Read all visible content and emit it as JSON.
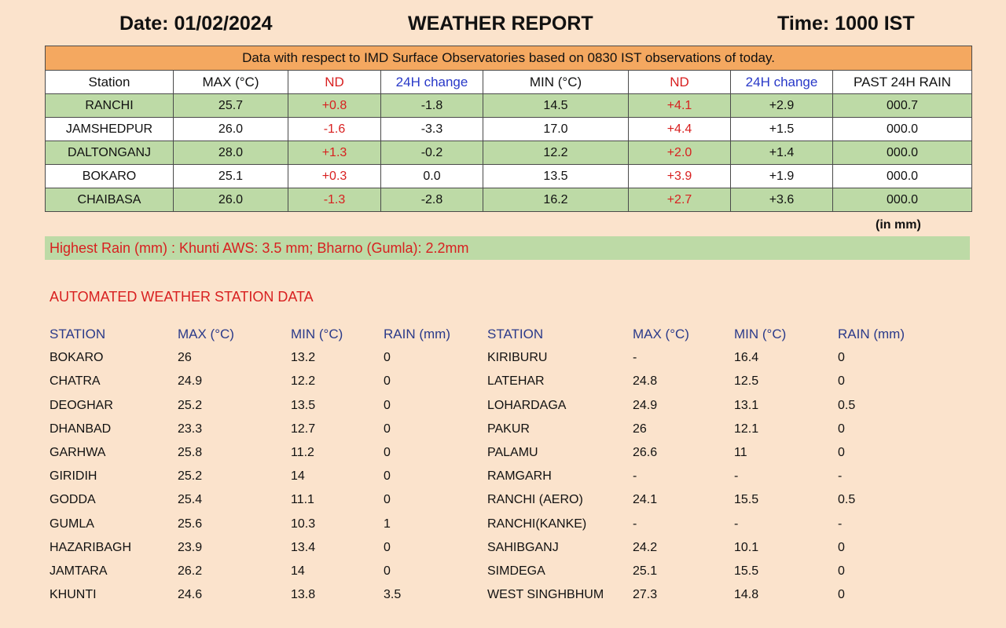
{
  "header": {
    "date": "Date: 01/02/2024",
    "title": "WEATHER REPORT",
    "time": "Time: 1000 IST"
  },
  "observations": {
    "banner": "Data with respect to IMD Surface Observatories based on 0830 IST observations of today.",
    "columns": [
      "Station",
      "MAX (°C)",
      "ND",
      "24H change",
      "MIN (°C)",
      "ND",
      "24H change",
      "PAST 24H RAIN"
    ],
    "rows": [
      [
        "RANCHI",
        "25.7",
        "+0.8",
        "-1.8",
        "14.5",
        "+4.1",
        "+2.9",
        "000.7"
      ],
      [
        "JAMSHEDPUR",
        "26.0",
        "-1.6",
        "-3.3",
        "17.0",
        "+4.4",
        "+1.5",
        "000.0"
      ],
      [
        "DALTONGANJ",
        "28.0",
        "+1.3",
        "-0.2",
        "12.2",
        "+2.0",
        "+1.4",
        "000.0"
      ],
      [
        "BOKARO",
        "25.1",
        "+0.3",
        "0.0",
        "13.5",
        "+3.9",
        "+1.9",
        "000.0"
      ],
      [
        "CHAIBASA",
        "26.0",
        "-1.3",
        "-2.8",
        "16.2",
        "+2.7",
        "+3.6",
        "000.0"
      ]
    ],
    "rain_unit": "(in mm)"
  },
  "highest_rain": "Highest Rain (mm) : Khunti AWS: 3.5 mm; Bharno (Gumla): 2.2mm",
  "aws": {
    "title": "AUTOMATED WEATHER STATION DATA",
    "columns": [
      "STATION",
      "MAX (°C)",
      "MIN (°C)",
      "RAIN (mm)",
      "STATION",
      "MAX (°C)",
      "MIN (°C)",
      "RAIN (mm)"
    ],
    "rows": [
      [
        "BOKARO",
        "26",
        "13.2",
        "0",
        "KIRIBURU",
        "-",
        "16.4",
        "0"
      ],
      [
        "CHATRA",
        "24.9",
        "12.2",
        "0",
        "LATEHAR",
        "24.8",
        "12.5",
        "0"
      ],
      [
        "DEOGHAR",
        "25.2",
        "13.5",
        "0",
        "LOHARDAGA",
        "24.9",
        "13.1",
        "0.5"
      ],
      [
        "DHANBAD",
        "23.3",
        "12.7",
        "0",
        "PAKUR",
        "26",
        "12.1",
        "0"
      ],
      [
        "GARHWA",
        "25.8",
        "11.2",
        "0",
        "PALAMU",
        "26.6",
        "11",
        "0"
      ],
      [
        "GIRIDIH",
        "25.2",
        "14",
        "0",
        "RAMGARH",
        "-",
        "-",
        "-"
      ],
      [
        "GODDA",
        "25.4",
        "11.1",
        "0",
        "RANCHI (AERO)",
        "24.1",
        "15.5",
        "0.5"
      ],
      [
        "GUMLA",
        "25.6",
        "10.3",
        "1",
        "RANCHI(KANKE)",
        "-",
        "-",
        "-"
      ],
      [
        "HAZARIBAGH",
        "23.9",
        "13.4",
        "0",
        "SAHIBGANJ",
        "24.2",
        "10.1",
        "0"
      ],
      [
        "JAMTARA",
        "26.2",
        "14",
        "0",
        "SIMDEGA",
        "25.1",
        "15.5",
        "0"
      ],
      [
        "KHUNTI",
        "24.6",
        "13.8",
        "3.5",
        "WEST SINGHBHUM",
        "27.3",
        "14.8",
        "0"
      ]
    ]
  }
}
